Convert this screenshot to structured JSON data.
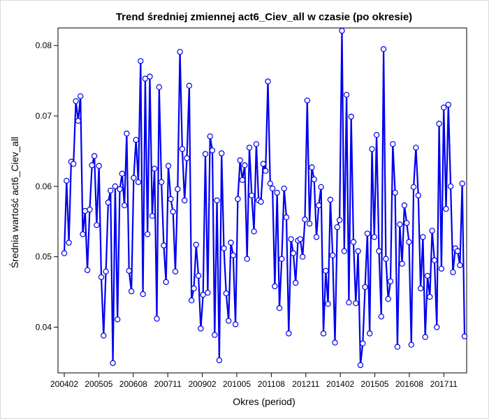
{
  "chart_data": {
    "type": "line",
    "title": "Trend średniej zmiennej act6_Ciev_all w czasie (po okresie)",
    "xlabel": "Okres (period)",
    "ylabel": "Średnia wartość act6_Ciev_all",
    "x_tick_labels": [
      "200402",
      "200505",
      "200608",
      "200711",
      "200902",
      "201005",
      "201108",
      "201211",
      "201402",
      "201505",
      "201608",
      "201711"
    ],
    "y_ticks": [
      0.04,
      0.05,
      0.06,
      0.07,
      0.08
    ],
    "y_tick_labels": [
      "0.04",
      "0.05",
      "0.06",
      "0.07",
      "0.08"
    ],
    "ylim": [
      0.0335,
      0.0825
    ],
    "x_period_start": "200402",
    "x_period_end": "201808",
    "colors": {
      "line": "#0000ee",
      "marker_stroke": "#0000ee",
      "marker_fill": "#ffffff",
      "axis": "#000000"
    },
    "series": [
      {
        "name": "act6_Ciev_all",
        "values": [
          0.0505,
          0.0608,
          0.052,
          0.0635,
          0.0632,
          0.0721,
          0.0693,
          0.0728,
          0.0532,
          0.0565,
          0.0481,
          0.0567,
          0.063,
          0.0643,
          0.0545,
          0.0629,
          0.0471,
          0.0388,
          0.0479,
          0.0577,
          0.0594,
          0.0349,
          0.06,
          0.0411,
          0.0596,
          0.0618,
          0.0573,
          0.0675,
          0.048,
          0.0451,
          0.0612,
          0.0666,
          0.0606,
          0.0778,
          0.0447,
          0.0753,
          0.0532,
          0.0756,
          0.0558,
          0.0625,
          0.0412,
          0.0741,
          0.0606,
          0.0516,
          0.0464,
          0.0629,
          0.0582,
          0.0564,
          0.0479,
          0.0596,
          0.0791,
          0.0653,
          0.058,
          0.064,
          0.0743,
          0.0438,
          0.0455,
          0.0517,
          0.0473,
          0.0398,
          0.0446,
          0.0646,
          0.0449,
          0.0671,
          0.0651,
          0.0389,
          0.058,
          0.0353,
          0.0647,
          0.0512,
          0.0448,
          0.0409,
          0.052,
          0.0502,
          0.0404,
          0.0582,
          0.0637,
          0.0609,
          0.063,
          0.0497,
          0.0655,
          0.0587,
          0.0536,
          0.066,
          0.058,
          0.0578,
          0.0632,
          0.0622,
          0.0749,
          0.0604,
          0.0597,
          0.0458,
          0.0591,
          0.0427,
          0.0497,
          0.0597,
          0.0556,
          0.0391,
          0.0525,
          0.0505,
          0.0463,
          0.0523,
          0.0525,
          0.05,
          0.0553,
          0.0722,
          0.0547,
          0.0627,
          0.061,
          0.0528,
          0.0573,
          0.0599,
          0.0391,
          0.048,
          0.0433,
          0.0581,
          0.0502,
          0.0378,
          0.0542,
          0.0552,
          0.0821,
          0.0508,
          0.073,
          0.0435,
          0.0699,
          0.0521,
          0.0434,
          0.0508,
          0.0346,
          0.0377,
          0.0457,
          0.0533,
          0.0391,
          0.0653,
          0.0528,
          0.0673,
          0.0508,
          0.0415,
          0.0795,
          0.0497,
          0.044,
          0.0465,
          0.066,
          0.0591,
          0.0372,
          0.0546,
          0.049,
          0.0573,
          0.0548,
          0.0521,
          0.0375,
          0.0599,
          0.0655,
          0.0587,
          0.0455,
          0.0528,
          0.0386,
          0.0473,
          0.0443,
          0.0537,
          0.0495,
          0.04,
          0.0689,
          0.0483,
          0.0712,
          0.0568,
          0.0716,
          0.06,
          0.0478,
          0.0512,
          0.0508,
          0.0488,
          0.0604,
          0.0387
        ]
      }
    ]
  }
}
